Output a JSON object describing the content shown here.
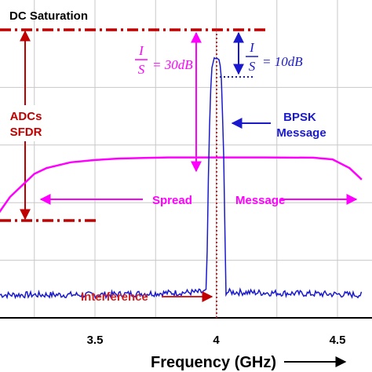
{
  "chart_data": {
    "type": "line",
    "xlabel": "Frequency (GHz)",
    "x_ticks": [
      "3.5",
      "4",
      "4.5"
    ],
    "x_tick_values": [
      3.5,
      4.0,
      4.5
    ],
    "xlim": [
      3.0,
      4.6
    ],
    "ylim": [
      0,
      1
    ],
    "grid": true,
    "colors": {
      "spread": "#ff00ff",
      "bpsk": "#1a1acc",
      "adc": "#c00000",
      "interference": "#d42020",
      "grid": "#c8c8c8"
    },
    "series": [
      {
        "key": "spread",
        "x": [
          3.0,
          3.04,
          3.07,
          3.1,
          3.15,
          3.2,
          3.25,
          3.3,
          3.4,
          3.5,
          3.6,
          3.7,
          3.8,
          4.0,
          4.2,
          4.4,
          4.48,
          4.55,
          4.6
        ],
        "y": [
          0.16,
          0.2,
          0.28,
          0.36,
          0.42,
          0.46,
          0.5,
          0.52,
          0.54,
          0.548,
          0.553,
          0.555,
          0.557,
          0.557,
          0.557,
          0.556,
          0.55,
          0.52,
          0.48
        ]
      },
      {
        "key": "bpsk",
        "x": [
          3.0,
          3.5,
          3.96,
          3.97,
          3.98,
          3.99,
          4.0,
          4.01,
          4.02,
          4.03,
          4.04,
          4.6
        ],
        "y": [
          0.08,
          0.08,
          0.09,
          0.6,
          0.86,
          0.9,
          0.9,
          0.9,
          0.86,
          0.6,
          0.09,
          0.08
        ]
      }
    ],
    "reference_lines": {
      "adc_saturation": 1.0,
      "adc_floor": 0.38,
      "bpsk_peak": 0.9,
      "interference_freq": 4.0
    },
    "annotations": {
      "adc_saturation": "DC Saturation",
      "adcs_sfdr": [
        "ADCs",
        "SFDR"
      ],
      "is_30": "= 30dB",
      "is_10": "= 10dB",
      "is_num": "I",
      "is_den": "S",
      "bpsk": [
        "BPSK",
        "Message"
      ],
      "spread": "Spread",
      "message": "Message",
      "interference": "Interference",
      "arrow_right": "⟶"
    }
  }
}
